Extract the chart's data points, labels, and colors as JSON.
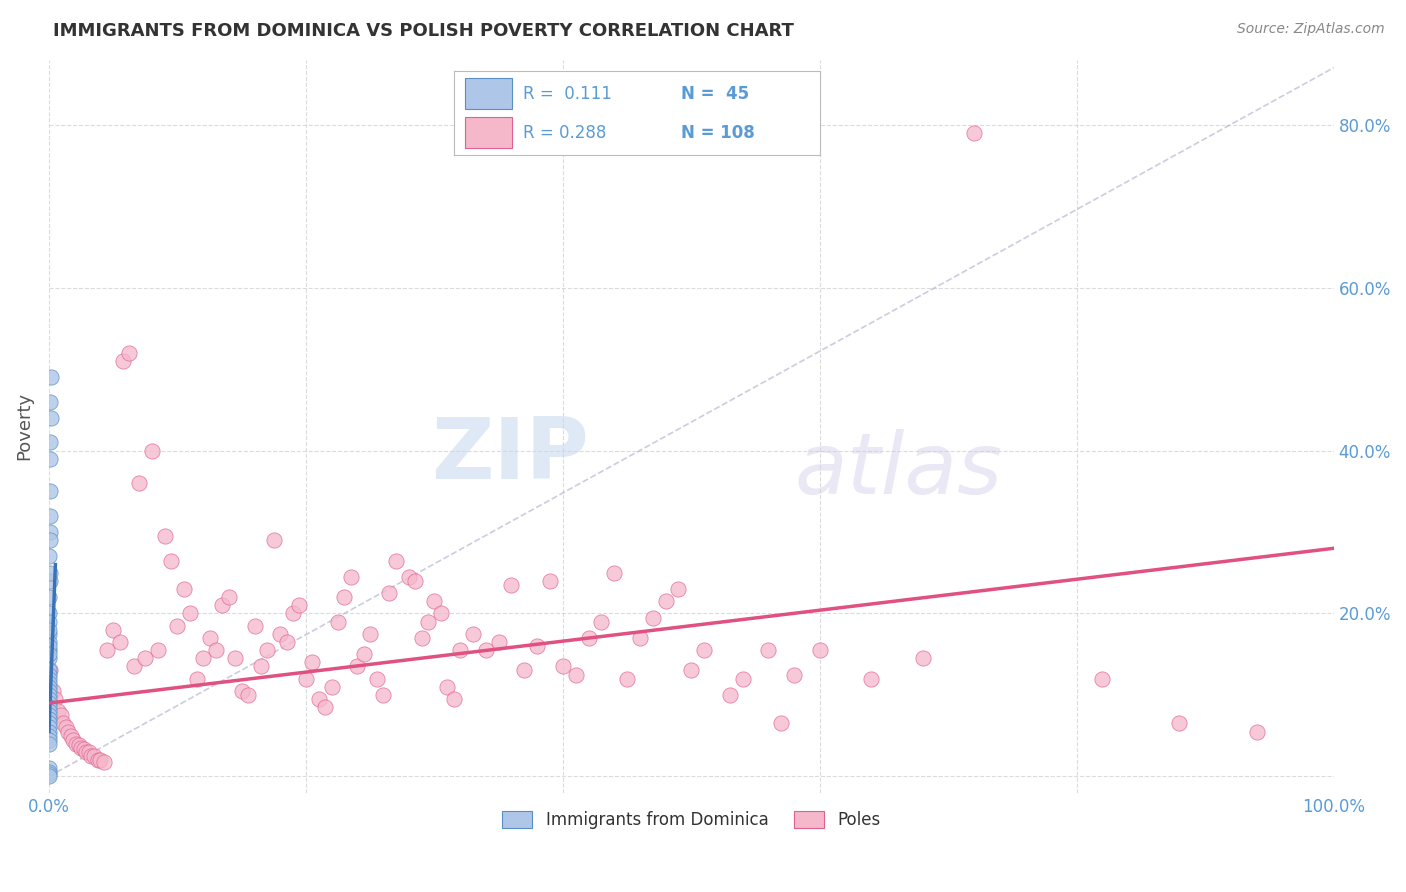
{
  "title": "IMMIGRANTS FROM DOMINICA VS POLISH POVERTY CORRELATION CHART",
  "source": "Source: ZipAtlas.com",
  "ylabel": "Poverty",
  "xlim": [
    0,
    1.0
  ],
  "ylim": [
    -0.02,
    0.88
  ],
  "watermark_zip": "ZIP",
  "watermark_atlas": "atlas",
  "blue_color": "#aec6e8",
  "pink_color": "#f5b8cb",
  "blue_edge_color": "#5a8fc4",
  "pink_edge_color": "#e06090",
  "blue_line_color": "#3a72b8",
  "pink_line_color": "#e05080",
  "blue_scatter": [
    [
      0.0008,
      0.46
    ],
    [
      0.0015,
      0.49
    ],
    [
      0.0012,
      0.44
    ],
    [
      0.0008,
      0.39
    ],
    [
      0.0006,
      0.41
    ],
    [
      0.0005,
      0.3
    ],
    [
      0.0008,
      0.32
    ],
    [
      0.0004,
      0.27
    ],
    [
      0.0006,
      0.29
    ],
    [
      0.0003,
      0.22
    ],
    [
      0.0005,
      0.24
    ],
    [
      0.0003,
      0.2
    ],
    [
      0.0002,
      0.19
    ],
    [
      0.0002,
      0.175
    ],
    [
      0.0001,
      0.165
    ],
    [
      0.0001,
      0.155
    ],
    [
      0.0002,
      0.16
    ],
    [
      0.0002,
      0.145
    ],
    [
      0.0003,
      0.13
    ],
    [
      0.0001,
      0.125
    ],
    [
      0.0002,
      0.12
    ],
    [
      0.0001,
      0.115
    ],
    [
      0.0002,
      0.11
    ],
    [
      0.0001,
      0.105
    ],
    [
      0.0001,
      0.1
    ],
    [
      0.0002,
      0.095
    ],
    [
      0.0001,
      0.09
    ],
    [
      0.0001,
      0.085
    ],
    [
      0.0001,
      0.08
    ],
    [
      0.0001,
      0.075
    ],
    [
      0.0001,
      0.07
    ],
    [
      0.0001,
      0.065
    ],
    [
      0.0001,
      0.06
    ],
    [
      0.0001,
      0.055
    ],
    [
      0.0001,
      0.05
    ],
    [
      0.0001,
      0.045
    ],
    [
      0.0001,
      0.04
    ],
    [
      0.0001,
      0.01
    ],
    [
      0.0001,
      0.005
    ],
    [
      0.0001,
      0.003
    ],
    [
      0.0001,
      0.0
    ],
    [
      0.0009,
      0.35
    ],
    [
      0.0007,
      0.25
    ],
    [
      0.0004,
      0.18
    ],
    [
      0.0003,
      0.15
    ]
  ],
  "pink_scatter": [
    [
      0.001,
      0.13
    ],
    [
      0.003,
      0.105
    ],
    [
      0.005,
      0.095
    ],
    [
      0.007,
      0.08
    ],
    [
      0.009,
      0.075
    ],
    [
      0.011,
      0.065
    ],
    [
      0.013,
      0.06
    ],
    [
      0.015,
      0.055
    ],
    [
      0.017,
      0.05
    ],
    [
      0.019,
      0.045
    ],
    [
      0.021,
      0.04
    ],
    [
      0.023,
      0.038
    ],
    [
      0.025,
      0.035
    ],
    [
      0.027,
      0.033
    ],
    [
      0.029,
      0.03
    ],
    [
      0.031,
      0.03
    ],
    [
      0.033,
      0.025
    ],
    [
      0.035,
      0.025
    ],
    [
      0.038,
      0.02
    ],
    [
      0.04,
      0.02
    ],
    [
      0.043,
      0.018
    ],
    [
      0.045,
      0.155
    ],
    [
      0.05,
      0.18
    ],
    [
      0.055,
      0.165
    ],
    [
      0.058,
      0.51
    ],
    [
      0.062,
      0.52
    ],
    [
      0.066,
      0.135
    ],
    [
      0.07,
      0.36
    ],
    [
      0.075,
      0.145
    ],
    [
      0.08,
      0.4
    ],
    [
      0.085,
      0.155
    ],
    [
      0.09,
      0.295
    ],
    [
      0.095,
      0.265
    ],
    [
      0.1,
      0.185
    ],
    [
      0.105,
      0.23
    ],
    [
      0.11,
      0.2
    ],
    [
      0.115,
      0.12
    ],
    [
      0.12,
      0.145
    ],
    [
      0.125,
      0.17
    ],
    [
      0.13,
      0.155
    ],
    [
      0.135,
      0.21
    ],
    [
      0.14,
      0.22
    ],
    [
      0.145,
      0.145
    ],
    [
      0.15,
      0.105
    ],
    [
      0.155,
      0.1
    ],
    [
      0.16,
      0.185
    ],
    [
      0.165,
      0.135
    ],
    [
      0.17,
      0.155
    ],
    [
      0.175,
      0.29
    ],
    [
      0.18,
      0.175
    ],
    [
      0.185,
      0.165
    ],
    [
      0.19,
      0.2
    ],
    [
      0.195,
      0.21
    ],
    [
      0.2,
      0.12
    ],
    [
      0.205,
      0.14
    ],
    [
      0.21,
      0.095
    ],
    [
      0.215,
      0.085
    ],
    [
      0.22,
      0.11
    ],
    [
      0.225,
      0.19
    ],
    [
      0.23,
      0.22
    ],
    [
      0.235,
      0.245
    ],
    [
      0.24,
      0.135
    ],
    [
      0.245,
      0.15
    ],
    [
      0.25,
      0.175
    ],
    [
      0.255,
      0.12
    ],
    [
      0.26,
      0.1
    ],
    [
      0.265,
      0.225
    ],
    [
      0.27,
      0.265
    ],
    [
      0.28,
      0.245
    ],
    [
      0.285,
      0.24
    ],
    [
      0.29,
      0.17
    ],
    [
      0.295,
      0.19
    ],
    [
      0.3,
      0.215
    ],
    [
      0.305,
      0.2
    ],
    [
      0.31,
      0.11
    ],
    [
      0.315,
      0.095
    ],
    [
      0.32,
      0.155
    ],
    [
      0.33,
      0.175
    ],
    [
      0.34,
      0.155
    ],
    [
      0.35,
      0.165
    ],
    [
      0.36,
      0.235
    ],
    [
      0.37,
      0.13
    ],
    [
      0.38,
      0.16
    ],
    [
      0.39,
      0.24
    ],
    [
      0.4,
      0.135
    ],
    [
      0.41,
      0.125
    ],
    [
      0.42,
      0.17
    ],
    [
      0.43,
      0.19
    ],
    [
      0.44,
      0.25
    ],
    [
      0.45,
      0.12
    ],
    [
      0.46,
      0.17
    ],
    [
      0.47,
      0.195
    ],
    [
      0.48,
      0.215
    ],
    [
      0.49,
      0.23
    ],
    [
      0.5,
      0.13
    ],
    [
      0.51,
      0.155
    ],
    [
      0.53,
      0.1
    ],
    [
      0.54,
      0.12
    ],
    [
      0.56,
      0.155
    ],
    [
      0.57,
      0.065
    ],
    [
      0.58,
      0.125
    ],
    [
      0.6,
      0.155
    ],
    [
      0.64,
      0.12
    ],
    [
      0.68,
      0.145
    ],
    [
      0.72,
      0.79
    ],
    [
      0.82,
      0.12
    ],
    [
      0.88,
      0.065
    ],
    [
      0.94,
      0.055
    ]
  ],
  "blue_line": {
    "x0": 0.0,
    "x1": 0.005,
    "y0": 0.055,
    "y1": 0.26
  },
  "pink_line": {
    "x0": 0.0,
    "x1": 1.0,
    "y0": 0.09,
    "y1": 0.28
  },
  "diag_line": {
    "x0": 0.0,
    "x1": 1.0,
    "y0": 0.0,
    "y1": 0.87
  }
}
